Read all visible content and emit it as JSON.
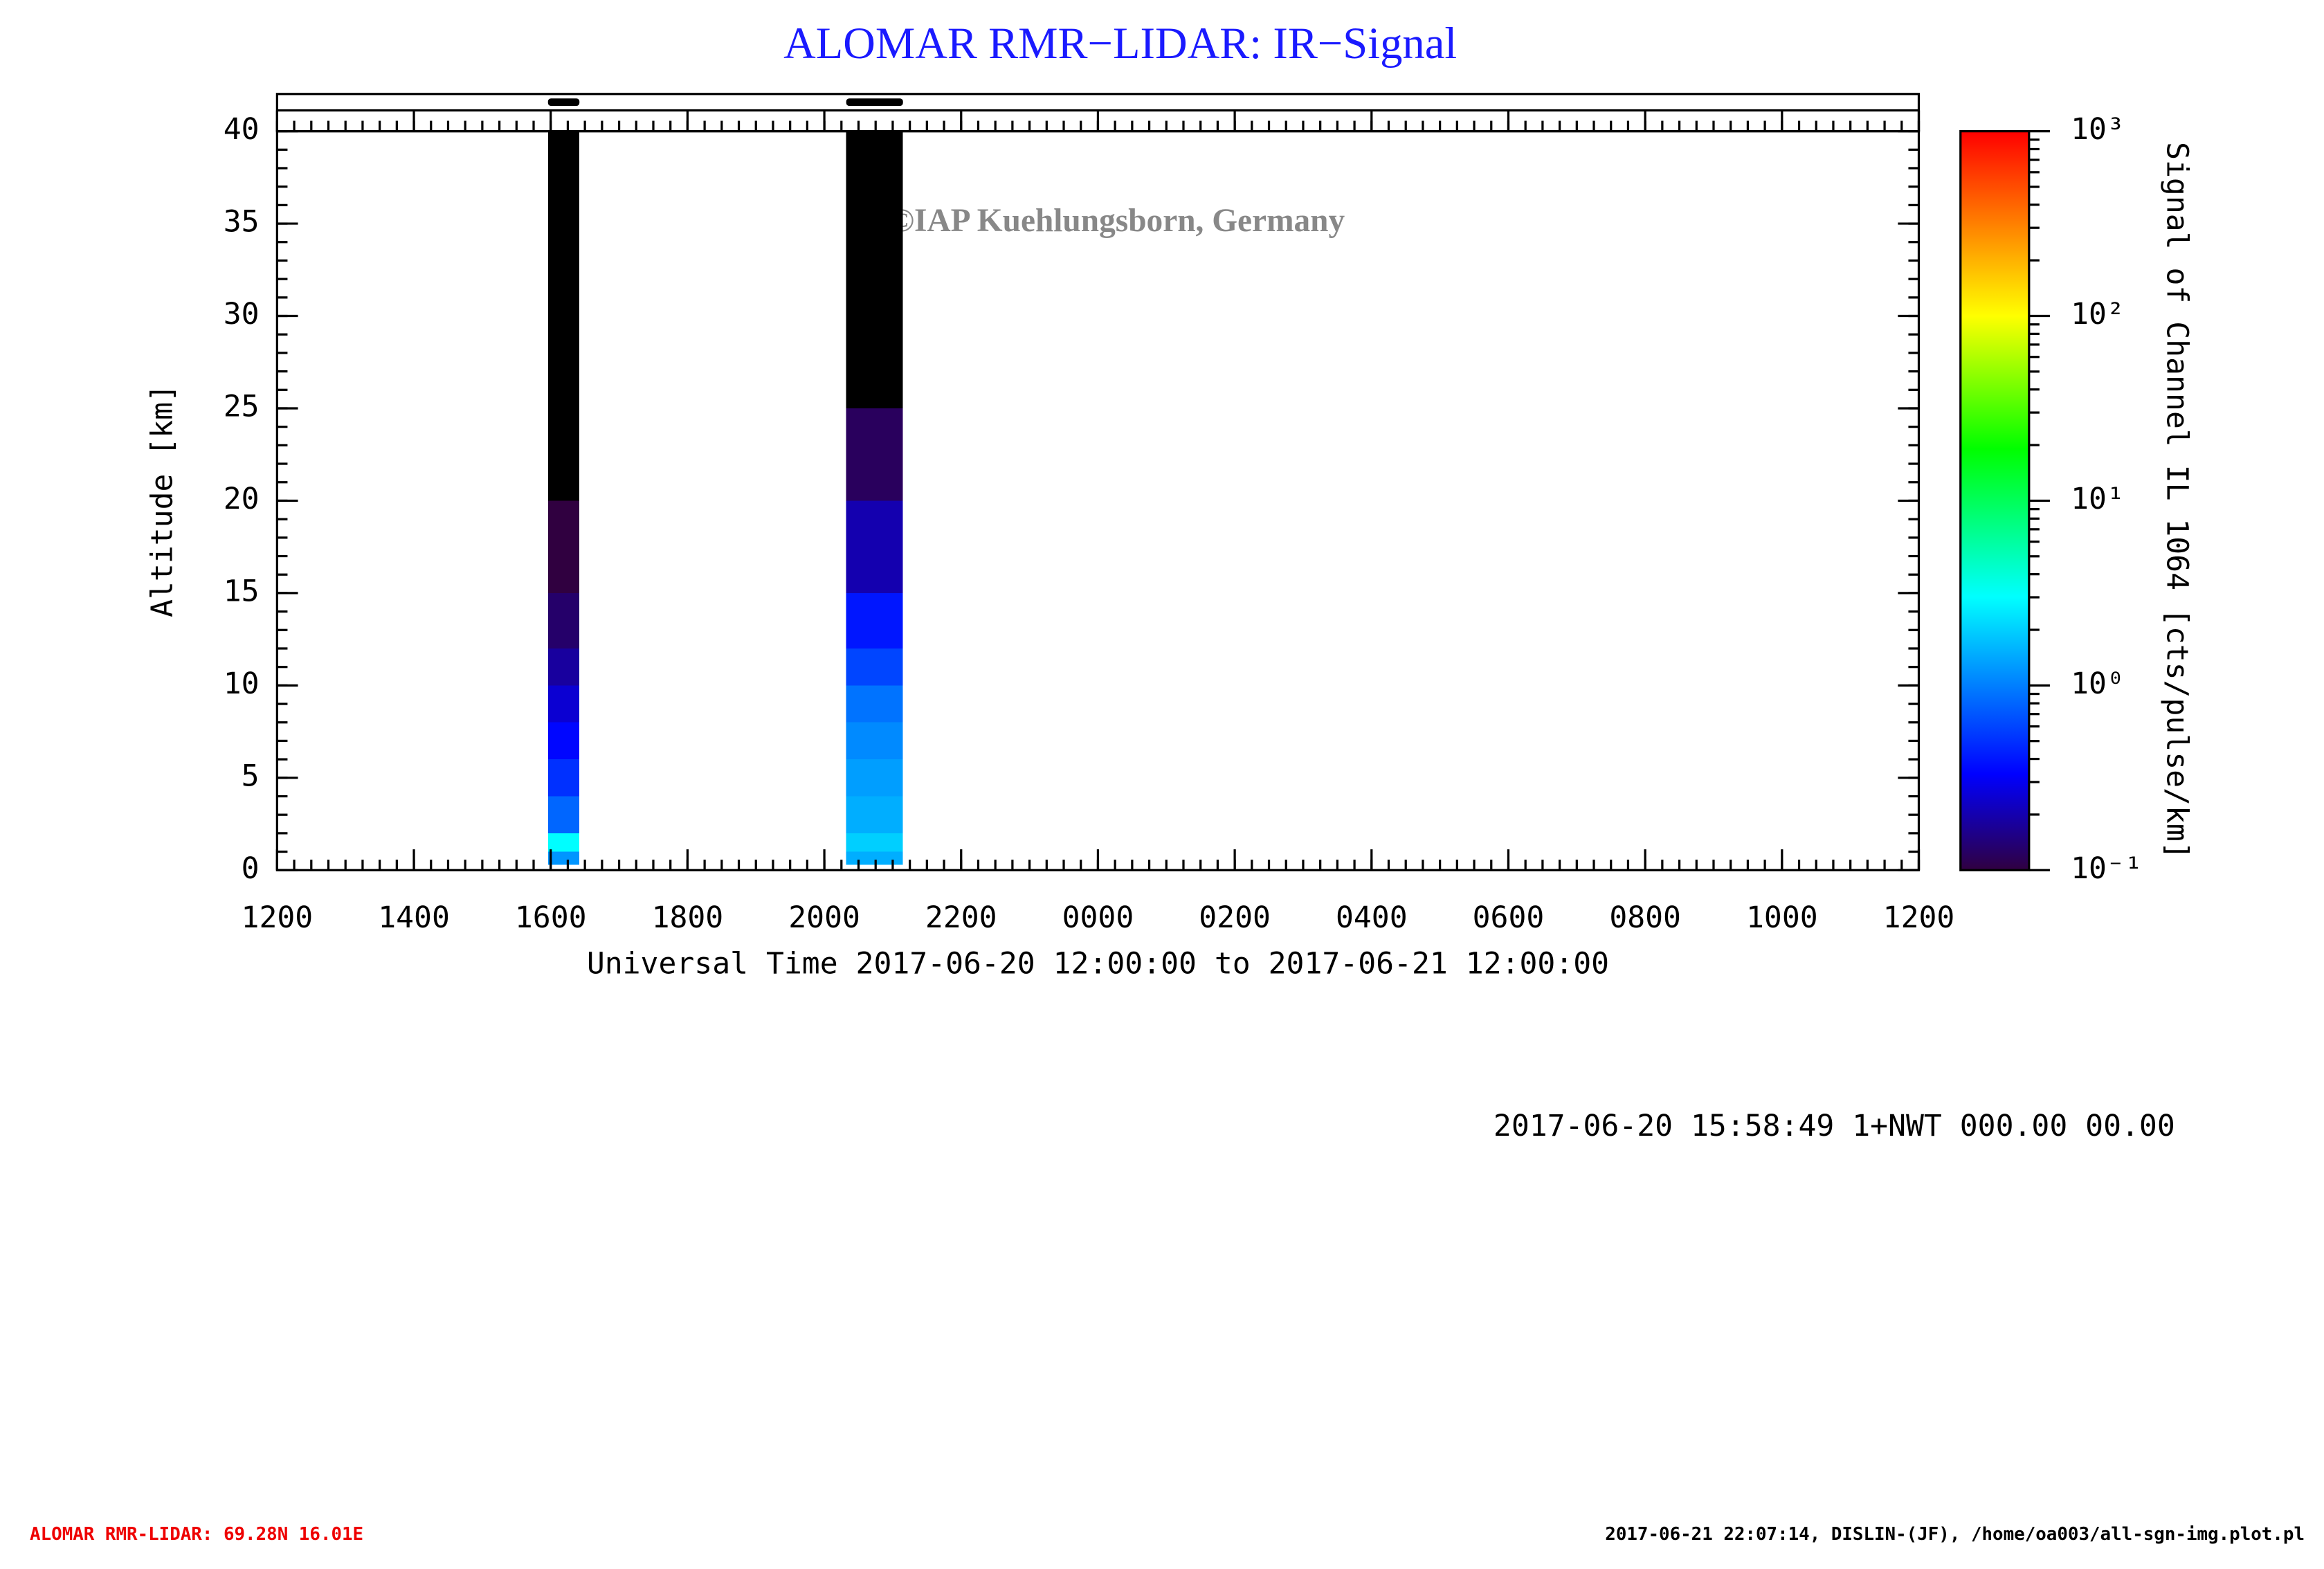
{
  "chart_data": {
    "type": "heatmap",
    "title": "ALOMAR RMR−LIDAR: IR−Signal",
    "x_label": "Universal Time 2017-06-20 12:00:00 to 2017-06-21 12:00:00",
    "y_label": "Altitude [km]",
    "colorbar_label": "Signal of Channel IL 1064 [cts/pulse/km]",
    "watermark": "©IAP Kuehlungsborn, Germany",
    "info": "2017-06-20 15:58:49 1+NWT 000.00 00.00",
    "footer_left": "ALOMAR RMR-LIDAR: 69.28N 16.01E",
    "footer_right": "2017-06-21 22:07:14, DISLIN-(JF), /home/oa003/all-sgn-img.plot.pl",
    "xlim": [
      12,
      36
    ],
    "xticks": [
      {
        "value": 12,
        "label": "1200"
      },
      {
        "value": 14,
        "label": "1400"
      },
      {
        "value": 16,
        "label": "1600"
      },
      {
        "value": 18,
        "label": "1800"
      },
      {
        "value": 20,
        "label": "2000"
      },
      {
        "value": 22,
        "label": "2200"
      },
      {
        "value": 24,
        "label": "0000"
      },
      {
        "value": 26,
        "label": "0200"
      },
      {
        "value": 28,
        "label": "0400"
      },
      {
        "value": 30,
        "label": "0600"
      },
      {
        "value": 32,
        "label": "0800"
      },
      {
        "value": 34,
        "label": "1000"
      },
      {
        "value": 36,
        "label": "1200"
      }
    ],
    "x_minor_step": 0.25,
    "ylim": [
      0,
      40
    ],
    "yticks": [
      0,
      5,
      10,
      15,
      20,
      25,
      30,
      35,
      40
    ],
    "y_minor_step": 1,
    "clim": [
      0.1,
      1000
    ],
    "color_scale": "log",
    "cticks": [
      {
        "value": 0.1,
        "label": "10⁻¹"
      },
      {
        "value": 1,
        "label": "10⁰"
      },
      {
        "value": 10,
        "label": "10¹"
      },
      {
        "value": 100,
        "label": "10²"
      },
      {
        "value": 1000,
        "label": "10³"
      }
    ],
    "colormap": [
      {
        "pos": 0,
        "color": "#300040"
      },
      {
        "pos": 0.13,
        "color": "#0000ff"
      },
      {
        "pos": 0.37,
        "color": "#00ffff"
      },
      {
        "pos": 0.57,
        "color": "#00ff00"
      },
      {
        "pos": 0.75,
        "color": "#ffff00"
      },
      {
        "pos": 1,
        "color": "#ff0000"
      }
    ],
    "under_color": "#000000",
    "altitude_bins": [
      0.3,
      1,
      2,
      4,
      6,
      8,
      10,
      12,
      15,
      20,
      25,
      40
    ],
    "periods": [
      {
        "start": 15.96,
        "end": 16.42,
        "values": [
          1.2,
          3,
          0.8,
          0.5,
          0.35,
          0.25,
          0.18,
          0.13,
          0.1,
          0.07,
          0.05
        ]
      },
      {
        "start": 20.32,
        "end": 21.15,
        "values": [
          1.5,
          2,
          1.5,
          1.3,
          1.1,
          0.9,
          0.6,
          0.4,
          0.2,
          0.12,
          0.06
        ]
      }
    ]
  }
}
